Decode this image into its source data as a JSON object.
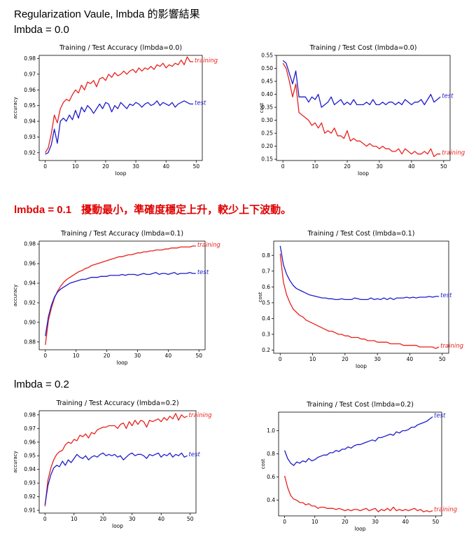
{
  "page": {
    "title": "Regularization Vaule, lmbda 的影響結果",
    "sections": [
      {
        "label": "lmbda = 0.0",
        "note": ""
      },
      {
        "label": "lmbda = 0.1",
        "note": "擾動最小，準確度穩定上升，較少上下波動。"
      },
      {
        "label": "lmbda = 0.2",
        "note": ""
      }
    ]
  },
  "chart_data": [
    {
      "type": "line",
      "title": "Training / Test  Accuracy (lmbda=0.0)",
      "xlabel": "loop",
      "ylabel": "accuracy",
      "xlim": [
        -2,
        52
      ],
      "ylim": [
        0.915,
        0.982
      ],
      "xticks": [
        0,
        10,
        20,
        30,
        40,
        50
      ],
      "yticks": [
        0.92,
        0.93,
        0.94,
        0.95,
        0.96,
        0.97,
        0.98
      ],
      "ytick_labels": [
        "0.92",
        "0.93",
        "0.94",
        "0.95",
        "0.96",
        "0.97",
        "0.98"
      ],
      "series": [
        {
          "name": "training",
          "color": "#e8211c",
          "values": [
            0.92,
            0.923,
            0.932,
            0.944,
            0.939,
            0.948,
            0.952,
            0.954,
            0.953,
            0.957,
            0.96,
            0.958,
            0.963,
            0.96,
            0.965,
            0.964,
            0.966,
            0.962,
            0.967,
            0.968,
            0.966,
            0.97,
            0.968,
            0.971,
            0.969,
            0.97,
            0.972,
            0.97,
            0.972,
            0.973,
            0.971,
            0.974,
            0.972,
            0.974,
            0.973,
            0.975,
            0.973,
            0.976,
            0.975,
            0.977,
            0.974,
            0.976,
            0.975,
            0.977,
            0.976,
            0.979,
            0.976,
            0.981,
            0.978,
            0.978
          ]
        },
        {
          "name": "test",
          "color": "#1c1ccc",
          "values": [
            0.919,
            0.92,
            0.925,
            0.935,
            0.926,
            0.94,
            0.942,
            0.94,
            0.944,
            0.941,
            0.947,
            0.942,
            0.949,
            0.946,
            0.95,
            0.948,
            0.945,
            0.948,
            0.951,
            0.948,
            0.952,
            0.951,
            0.946,
            0.95,
            0.948,
            0.952,
            0.95,
            0.948,
            0.951,
            0.95,
            0.952,
            0.951,
            0.949,
            0.951,
            0.952,
            0.95,
            0.951,
            0.953,
            0.95,
            0.952,
            0.951,
            0.95,
            0.952,
            0.949,
            0.951,
            0.952,
            0.953,
            0.952,
            0.951,
            0.951
          ]
        }
      ]
    },
    {
      "type": "line",
      "title": "Training / Test   Cost (lmbda=0.0)",
      "xlabel": "loop",
      "ylabel": "cost",
      "xlim": [
        -2,
        52
      ],
      "ylim": [
        0.145,
        0.55
      ],
      "xticks": [
        0,
        10,
        20,
        30,
        40,
        50
      ],
      "yticks": [
        0.15,
        0.2,
        0.25,
        0.3,
        0.35,
        0.4,
        0.45,
        0.5,
        0.55
      ],
      "ytick_labels": [
        "0.15",
        "0.20",
        "0.25",
        "0.30",
        "0.35",
        "0.40",
        "0.45",
        "0.50",
        "0.55"
      ],
      "series": [
        {
          "name": "test",
          "color": "#1c1ccc",
          "values": [
            0.53,
            0.52,
            0.48,
            0.44,
            0.49,
            0.39,
            0.39,
            0.39,
            0.37,
            0.39,
            0.38,
            0.4,
            0.35,
            0.36,
            0.37,
            0.39,
            0.36,
            0.37,
            0.38,
            0.36,
            0.37,
            0.36,
            0.38,
            0.36,
            0.36,
            0.36,
            0.37,
            0.36,
            0.38,
            0.36,
            0.36,
            0.37,
            0.36,
            0.37,
            0.37,
            0.36,
            0.37,
            0.36,
            0.38,
            0.37,
            0.36,
            0.37,
            0.37,
            0.38,
            0.36,
            0.38,
            0.4,
            0.37,
            0.38,
            0.39
          ]
        },
        {
          "name": "training",
          "color": "#e8211c",
          "values": [
            0.52,
            0.5,
            0.45,
            0.39,
            0.44,
            0.33,
            0.32,
            0.31,
            0.3,
            0.28,
            0.29,
            0.27,
            0.29,
            0.25,
            0.26,
            0.25,
            0.27,
            0.24,
            0.24,
            0.23,
            0.26,
            0.22,
            0.23,
            0.22,
            0.22,
            0.21,
            0.2,
            0.21,
            0.2,
            0.2,
            0.19,
            0.2,
            0.19,
            0.19,
            0.18,
            0.18,
            0.19,
            0.17,
            0.19,
            0.18,
            0.17,
            0.18,
            0.17,
            0.17,
            0.18,
            0.17,
            0.19,
            0.16,
            0.17,
            0.17
          ]
        }
      ]
    },
    {
      "type": "line",
      "title": "Training / Test  Accuracy (lmbda=0.1)",
      "xlabel": "loop",
      "ylabel": "accuracy",
      "xlim": [
        -2,
        52
      ],
      "ylim": [
        0.872,
        0.983
      ],
      "xticks": [
        0,
        10,
        20,
        30,
        40,
        50
      ],
      "yticks": [
        0.88,
        0.9,
        0.92,
        0.94,
        0.96,
        0.98
      ],
      "ytick_labels": [
        "0.88",
        "0.90",
        "0.92",
        "0.94",
        "0.96",
        "0.98"
      ],
      "series": [
        {
          "name": "training",
          "color": "#e8211c",
          "values": [
            0.877,
            0.902,
            0.915,
            0.925,
            0.932,
            0.937,
            0.941,
            0.944,
            0.946,
            0.948,
            0.95,
            0.952,
            0.953,
            0.955,
            0.956,
            0.958,
            0.959,
            0.96,
            0.961,
            0.962,
            0.963,
            0.964,
            0.965,
            0.966,
            0.967,
            0.967,
            0.968,
            0.969,
            0.969,
            0.97,
            0.971,
            0.971,
            0.972,
            0.972,
            0.973,
            0.973,
            0.974,
            0.974,
            0.974,
            0.975,
            0.975,
            0.976,
            0.976,
            0.976,
            0.977,
            0.977,
            0.977,
            0.977,
            0.978,
            0.978
          ]
        },
        {
          "name": "test",
          "color": "#1c1ccc",
          "values": [
            0.886,
            0.906,
            0.918,
            0.926,
            0.931,
            0.934,
            0.936,
            0.938,
            0.94,
            0.941,
            0.942,
            0.943,
            0.944,
            0.944,
            0.945,
            0.946,
            0.946,
            0.946,
            0.947,
            0.947,
            0.947,
            0.948,
            0.948,
            0.948,
            0.948,
            0.949,
            0.948,
            0.949,
            0.949,
            0.949,
            0.948,
            0.949,
            0.95,
            0.949,
            0.949,
            0.95,
            0.951,
            0.949,
            0.95,
            0.95,
            0.949,
            0.95,
            0.951,
            0.949,
            0.95,
            0.95,
            0.95,
            0.951,
            0.95,
            0.95
          ]
        }
      ]
    },
    {
      "type": "line",
      "title": "Training / Test   Cost (lmbda=0.1)",
      "xlabel": "loop",
      "ylabel": "cost",
      "xlim": [
        -2,
        52
      ],
      "ylim": [
        0.18,
        0.89
      ],
      "xticks": [
        0,
        10,
        20,
        30,
        40,
        50
      ],
      "yticks": [
        0.2,
        0.3,
        0.4,
        0.5,
        0.6,
        0.7,
        0.8
      ],
      "ytick_labels": [
        "0.2",
        "0.3",
        "0.4",
        "0.5",
        "0.6",
        "0.7",
        "0.8"
      ],
      "series": [
        {
          "name": "test",
          "color": "#1c1ccc",
          "values": [
            0.86,
            0.74,
            0.68,
            0.64,
            0.61,
            0.59,
            0.58,
            0.57,
            0.56,
            0.55,
            0.545,
            0.54,
            0.535,
            0.53,
            0.53,
            0.525,
            0.525,
            0.52,
            0.52,
            0.525,
            0.52,
            0.52,
            0.52,
            0.53,
            0.525,
            0.52,
            0.52,
            0.52,
            0.53,
            0.52,
            0.525,
            0.52,
            0.53,
            0.52,
            0.53,
            0.52,
            0.53,
            0.53,
            0.53,
            0.535,
            0.53,
            0.535,
            0.53,
            0.535,
            0.535,
            0.535,
            0.54,
            0.535,
            0.54,
            0.54
          ]
        },
        {
          "name": "training",
          "color": "#e8211c",
          "values": [
            0.81,
            0.63,
            0.55,
            0.5,
            0.46,
            0.44,
            0.42,
            0.41,
            0.39,
            0.38,
            0.37,
            0.36,
            0.35,
            0.34,
            0.33,
            0.32,
            0.32,
            0.31,
            0.3,
            0.3,
            0.29,
            0.29,
            0.28,
            0.28,
            0.28,
            0.27,
            0.27,
            0.26,
            0.26,
            0.26,
            0.25,
            0.25,
            0.25,
            0.25,
            0.24,
            0.24,
            0.24,
            0.24,
            0.23,
            0.23,
            0.23,
            0.23,
            0.23,
            0.22,
            0.22,
            0.22,
            0.22,
            0.22,
            0.21,
            0.22
          ]
        }
      ]
    },
    {
      "type": "line",
      "title": "Training / Test  Accuracy (lmbda=0.2)",
      "xlabel": "loop",
      "ylabel": "accuracy",
      "xlim": [
        -2,
        52
      ],
      "ylim": [
        0.908,
        0.983
      ],
      "xticks": [
        0,
        10,
        20,
        30,
        40,
        50
      ],
      "yticks": [
        0.91,
        0.92,
        0.93,
        0.94,
        0.95,
        0.96,
        0.97,
        0.98
      ],
      "ytick_labels": [
        "0.91",
        "0.92",
        "0.93",
        "0.94",
        "0.95",
        "0.96",
        "0.97",
        "0.98"
      ],
      "series": [
        {
          "name": "training",
          "color": "#e8211c",
          "values": [
            0.913,
            0.932,
            0.941,
            0.947,
            0.951,
            0.953,
            0.954,
            0.958,
            0.96,
            0.959,
            0.962,
            0.961,
            0.965,
            0.964,
            0.966,
            0.963,
            0.967,
            0.966,
            0.969,
            0.97,
            0.971,
            0.971,
            0.972,
            0.972,
            0.972,
            0.97,
            0.973,
            0.974,
            0.97,
            0.975,
            0.972,
            0.976,
            0.973,
            0.976,
            0.975,
            0.971,
            0.976,
            0.975,
            0.976,
            0.977,
            0.975,
            0.978,
            0.976,
            0.979,
            0.977,
            0.981,
            0.976,
            0.98,
            0.978,
            0.979
          ]
        },
        {
          "name": "test",
          "color": "#1c1ccc",
          "values": [
            0.914,
            0.928,
            0.936,
            0.941,
            0.943,
            0.942,
            0.946,
            0.943,
            0.947,
            0.945,
            0.948,
            0.951,
            0.949,
            0.948,
            0.95,
            0.947,
            0.949,
            0.95,
            0.949,
            0.951,
            0.952,
            0.95,
            0.951,
            0.95,
            0.951,
            0.949,
            0.95,
            0.947,
            0.949,
            0.951,
            0.952,
            0.95,
            0.951,
            0.951,
            0.95,
            0.948,
            0.951,
            0.95,
            0.951,
            0.952,
            0.949,
            0.951,
            0.95,
            0.952,
            0.949,
            0.951,
            0.95,
            0.952,
            0.949,
            0.95
          ]
        }
      ]
    },
    {
      "type": "line",
      "title": "Training / Test   Cost (lmbda=0.2)",
      "xlabel": "loop",
      "ylabel": "cost",
      "xlim": [
        -2,
        52
      ],
      "ylim": [
        0.265,
        1.16
      ],
      "xticks": [
        0,
        10,
        20,
        30,
        40,
        50
      ],
      "yticks": [
        0.4,
        0.6,
        0.8,
        1.0
      ],
      "ytick_labels": [
        "0.4",
        "0.6",
        "0.8",
        "1.0"
      ],
      "series": [
        {
          "name": "test",
          "color": "#1c1ccc",
          "values": [
            0.83,
            0.76,
            0.72,
            0.7,
            0.73,
            0.72,
            0.74,
            0.73,
            0.76,
            0.74,
            0.75,
            0.77,
            0.78,
            0.79,
            0.79,
            0.81,
            0.81,
            0.83,
            0.82,
            0.84,
            0.84,
            0.86,
            0.85,
            0.87,
            0.88,
            0.88,
            0.89,
            0.9,
            0.91,
            0.92,
            0.91,
            0.94,
            0.94,
            0.95,
            0.96,
            0.97,
            0.96,
            0.99,
            0.98,
            1.0,
            1.0,
            1.01,
            1.03,
            1.03,
            1.05,
            1.06,
            1.07,
            1.08,
            1.1,
            1.12
          ]
        },
        {
          "name": "training",
          "color": "#e8211c",
          "values": [
            0.61,
            0.51,
            0.44,
            0.41,
            0.4,
            0.38,
            0.38,
            0.36,
            0.37,
            0.35,
            0.35,
            0.33,
            0.34,
            0.34,
            0.33,
            0.33,
            0.33,
            0.32,
            0.33,
            0.32,
            0.31,
            0.32,
            0.31,
            0.32,
            0.32,
            0.31,
            0.32,
            0.33,
            0.31,
            0.32,
            0.33,
            0.3,
            0.32,
            0.31,
            0.33,
            0.31,
            0.34,
            0.31,
            0.32,
            0.31,
            0.32,
            0.31,
            0.32,
            0.33,
            0.31,
            0.32,
            0.3,
            0.31,
            0.3,
            0.31
          ]
        }
      ]
    }
  ]
}
